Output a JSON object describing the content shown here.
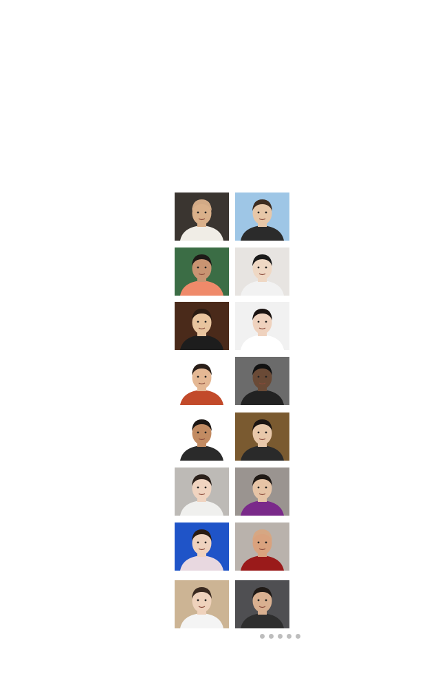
{
  "gallery": {
    "items": [
      {
        "label": "",
        "bg": "#3a3530",
        "skin": "#d9b08a",
        "hair": "#d2aa86",
        "cloth": "#f0ede6"
      },
      {
        "label": "",
        "bg": "#9ec6e6",
        "skin": "#e7c7a8",
        "hair": "#3d2c20",
        "cloth": "#2b2b2b"
      },
      {
        "label": "",
        "bg": "#3b6d45",
        "skin": "#c99472",
        "hair": "#1e1a17",
        "cloth": "#ef8a6a"
      },
      {
        "label": "",
        "bg": "#e7e4e1",
        "skin": "#efd8c4",
        "hair": "#1a1a1a",
        "cloth": "#f2f2f2"
      },
      {
        "label": "",
        "bg": "#4a2a1a",
        "skin": "#e8c49e",
        "hair": "#2a1b12",
        "cloth": "#1d1d1d"
      },
      {
        "label": "",
        "bg": "#f1f1f1",
        "skin": "#efd2be",
        "hair": "#1a1210",
        "cloth": "#ffffff"
      },
      {
        "label": "",
        "bg": "#ffffff",
        "skin": "#e4b894",
        "hair": "#2a1f19",
        "cloth": "#c24a2a"
      },
      {
        "label": "",
        "bg": "#6b6b6b",
        "skin": "#6a4a36",
        "hair": "#111111",
        "cloth": "#222222"
      },
      {
        "label": "",
        "bg": "#ffffff",
        "skin": "#c28b62",
        "hair": "#1b1512",
        "cloth": "#2a2a2a"
      },
      {
        "label": "",
        "bg": "#7a5a30",
        "skin": "#e8c8aa",
        "hair": "#1b1512",
        "cloth": "#2a2a2a"
      },
      {
        "label": "",
        "bg": "#bdbab6",
        "skin": "#f0d4c0",
        "hair": "#2a201a",
        "cloth": "#f0f0ee"
      },
      {
        "label": "",
        "bg": "#9a9490",
        "skin": "#e6c4a6",
        "hair": "#1f1915",
        "cloth": "#7a2a8a"
      },
      {
        "label": "",
        "bg": "#1f54c8",
        "skin": "#efd2be",
        "hair": "#2a1b12",
        "cloth": "#e8d8e0"
      },
      {
        "label": "",
        "bg": "#b9b2ac",
        "skin": "#d9a27e",
        "hair": "#d6a783",
        "cloth": "#9a1a1a"
      },
      {
        "label": "",
        "bg": "#ccb494",
        "skin": "#efd2bc",
        "hair": "#3a2a20",
        "cloth": "#f4f4f4"
      },
      {
        "label": "",
        "bg": "#4f4f52",
        "skin": "#d9b090",
        "hair": "#201a16",
        "cloth": "#2e2e2e"
      }
    ]
  },
  "pager": {
    "count": 5,
    "active": 0,
    "color": "#bdbdbd"
  }
}
